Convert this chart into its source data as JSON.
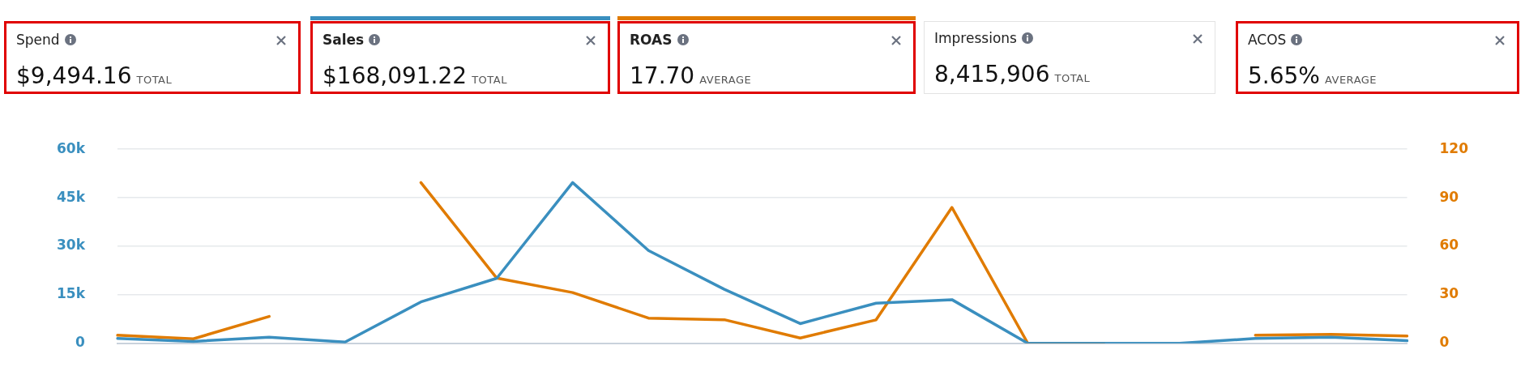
{
  "chart_data": [
    {
      "type": "other",
      "annotations": [
        "Spend",
        "$9,494.16",
        "TOTAL",
        "Sales",
        "$168,091.22",
        "TOTAL",
        "ROAS",
        "17.70",
        "AVERAGE",
        "Impressions",
        "8,415,906",
        "TOTAL",
        "ACOS",
        "5.65%",
        "AVERAGE"
      ],
      "colors": [
        null,
        "#3a8fbf",
        "#e07b00",
        null,
        null
      ]
    },
    {
      "type": "line",
      "categories": [
        null,
        null,
        null,
        null,
        null,
        null,
        null,
        null,
        null,
        null,
        null,
        null,
        null,
        null,
        null,
        null,
        null,
        null
      ],
      "series": [
        {
          "color": "#3a8fbf",
          "values": [
            1500,
            600,
            1900,
            400,
            12800,
            20100,
            49700,
            28700,
            16700,
            6100,
            12400,
            13500,
            0,
            0,
            0,
            1500,
            1900,
            800
          ]
        },
        {
          "color": "#e07b00",
          "axis": "y2",
          "values": [
            5,
            2.8,
            16.6,
            null,
            99.4,
            40.3,
            31.4,
            15.6,
            14.6,
            3.3,
            14.5,
            84,
            0,
            0,
            null,
            5,
            5.5,
            4.5
          ]
        }
      ],
      "ylim": [
        0,
        60000
      ],
      "yticks": [
        0,
        {
          "value": 15000,
          "label": "15k"
        },
        {
          "value": 30000,
          "label": "30k"
        },
        {
          "value": 45000,
          "label": "45k"
        },
        {
          "value": 60000,
          "label": "60k"
        }
      ],
      "y2lim": [
        0,
        120
      ],
      "y2ticks": [
        0,
        30,
        60,
        90,
        120
      ],
      "grid": "y",
      "legend": false,
      "marker": "none",
      "line_style": "solid",
      "tick_labels": "y"
    }
  ]
}
